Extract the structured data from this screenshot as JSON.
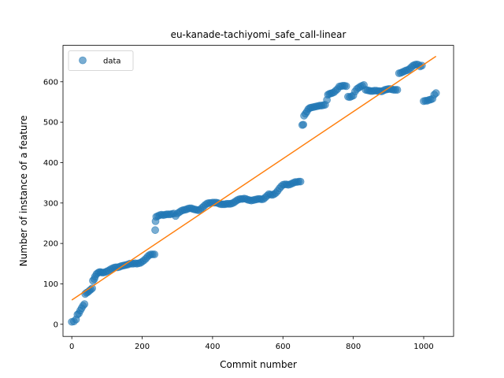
{
  "chart_data": {
    "type": "scatter",
    "title": "eu-kanade-tachiyomi_safe_call-linear",
    "xlabel": "Commit number",
    "ylabel": "Number of instance of a feature",
    "xlim": [
      -25,
      1085
    ],
    "ylim": [
      -30,
      690
    ],
    "xticks": [
      0,
      200,
      400,
      600,
      800,
      1000
    ],
    "yticks": [
      0,
      100,
      200,
      300,
      400,
      500,
      600
    ],
    "grid": false,
    "legend": {
      "placement": "upper-left",
      "entries": [
        "data"
      ]
    },
    "colors": {
      "data": "#1f77b4",
      "fit": "#ff7f0e"
    },
    "series": [
      {
        "name": "data",
        "kind": "scatter",
        "points": [
          [
            0,
            6
          ],
          [
            6,
            7
          ],
          [
            12,
            12
          ],
          [
            16,
            24
          ],
          [
            20,
            27
          ],
          [
            24,
            34
          ],
          [
            28,
            40
          ],
          [
            32,
            46
          ],
          [
            36,
            50
          ],
          [
            38,
            75
          ],
          [
            42,
            78
          ],
          [
            46,
            80
          ],
          [
            50,
            83
          ],
          [
            54,
            86
          ],
          [
            58,
            89
          ],
          [
            60,
            108
          ],
          [
            64,
            112
          ],
          [
            66,
            118
          ],
          [
            70,
            124
          ],
          [
            74,
            127
          ],
          [
            78,
            129
          ],
          [
            82,
            129
          ],
          [
            86,
            128
          ],
          [
            90,
            128
          ],
          [
            95,
            129
          ],
          [
            100,
            131
          ],
          [
            105,
            133
          ],
          [
            110,
            136
          ],
          [
            115,
            138
          ],
          [
            120,
            140
          ],
          [
            125,
            141
          ],
          [
            130,
            141
          ],
          [
            135,
            142
          ],
          [
            140,
            144
          ],
          [
            145,
            145
          ],
          [
            150,
            146
          ],
          [
            155,
            147
          ],
          [
            160,
            148
          ],
          [
            165,
            150
          ],
          [
            170,
            150
          ],
          [
            175,
            150
          ],
          [
            180,
            151
          ],
          [
            185,
            150
          ],
          [
            190,
            151
          ],
          [
            195,
            152
          ],
          [
            200,
            155
          ],
          [
            205,
            158
          ],
          [
            210,
            162
          ],
          [
            215,
            167
          ],
          [
            220,
            171
          ],
          [
            225,
            173
          ],
          [
            230,
            173
          ],
          [
            235,
            173
          ],
          [
            237,
            233
          ],
          [
            238,
            255
          ],
          [
            240,
            266
          ],
          [
            245,
            268
          ],
          [
            250,
            270
          ],
          [
            255,
            271
          ],
          [
            260,
            270
          ],
          [
            265,
            271
          ],
          [
            270,
            272
          ],
          [
            275,
            272
          ],
          [
            280,
            272
          ],
          [
            285,
            273
          ],
          [
            290,
            274
          ],
          [
            295,
            268
          ],
          [
            300,
            274
          ],
          [
            305,
            277
          ],
          [
            310,
            280
          ],
          [
            315,
            282
          ],
          [
            320,
            283
          ],
          [
            325,
            284
          ],
          [
            330,
            286
          ],
          [
            335,
            287
          ],
          [
            340,
            287
          ],
          [
            345,
            285
          ],
          [
            350,
            284
          ],
          [
            355,
            283
          ],
          [
            360,
            282
          ],
          [
            365,
            284
          ],
          [
            370,
            288
          ],
          [
            375,
            292
          ],
          [
            380,
            296
          ],
          [
            385,
            299
          ],
          [
            390,
            300
          ],
          [
            395,
            300
          ],
          [
            400,
            301
          ],
          [
            405,
            301
          ],
          [
            410,
            301
          ],
          [
            415,
            300
          ],
          [
            420,
            298
          ],
          [
            425,
            297
          ],
          [
            430,
            297
          ],
          [
            435,
            297
          ],
          [
            440,
            298
          ],
          [
            445,
            298
          ],
          [
            450,
            298
          ],
          [
            455,
            299
          ],
          [
            460,
            301
          ],
          [
            465,
            304
          ],
          [
            470,
            307
          ],
          [
            475,
            309
          ],
          [
            480,
            310
          ],
          [
            485,
            310
          ],
          [
            490,
            311
          ],
          [
            495,
            310
          ],
          [
            500,
            308
          ],
          [
            505,
            307
          ],
          [
            510,
            306
          ],
          [
            515,
            307
          ],
          [
            520,
            308
          ],
          [
            525,
            309
          ],
          [
            530,
            310
          ],
          [
            535,
            310
          ],
          [
            540,
            309
          ],
          [
            545,
            310
          ],
          [
            550,
            314
          ],
          [
            555,
            318
          ],
          [
            560,
            322
          ],
          [
            565,
            321
          ],
          [
            570,
            320
          ],
          [
            575,
            322
          ],
          [
            580,
            325
          ],
          [
            585,
            330
          ],
          [
            590,
            336
          ],
          [
            595,
            341
          ],
          [
            600,
            345
          ],
          [
            605,
            346
          ],
          [
            610,
            346
          ],
          [
            615,
            345
          ],
          [
            620,
            346
          ],
          [
            625,
            348
          ],
          [
            630,
            350
          ],
          [
            635,
            352
          ],
          [
            640,
            352
          ],
          [
            645,
            353
          ],
          [
            650,
            353
          ],
          [
            655,
            493
          ],
          [
            658,
            494
          ],
          [
            660,
            516
          ],
          [
            664,
            521
          ],
          [
            668,
            526
          ],
          [
            672,
            532
          ],
          [
            676,
            535
          ],
          [
            680,
            536
          ],
          [
            685,
            537
          ],
          [
            690,
            538
          ],
          [
            695,
            539
          ],
          [
            700,
            540
          ],
          [
            705,
            541
          ],
          [
            710,
            541
          ],
          [
            715,
            542
          ],
          [
            720,
            543
          ],
          [
            725,
            555
          ],
          [
            728,
            568
          ],
          [
            732,
            570
          ],
          [
            736,
            571
          ],
          [
            740,
            572
          ],
          [
            745,
            574
          ],
          [
            750,
            578
          ],
          [
            755,
            582
          ],
          [
            760,
            588
          ],
          [
            765,
            589
          ],
          [
            770,
            590
          ],
          [
            775,
            590
          ],
          [
            780,
            589
          ],
          [
            785,
            563
          ],
          [
            790,
            562
          ],
          [
            795,
            564
          ],
          [
            800,
            566
          ],
          [
            805,
            576
          ],
          [
            810,
            582
          ],
          [
            815,
            585
          ],
          [
            820,
            588
          ],
          [
            825,
            590
          ],
          [
            830,
            592
          ],
          [
            835,
            580
          ],
          [
            840,
            579
          ],
          [
            845,
            578
          ],
          [
            850,
            577
          ],
          [
            855,
            577
          ],
          [
            860,
            578
          ],
          [
            865,
            578
          ],
          [
            870,
            577
          ],
          [
            875,
            577
          ],
          [
            880,
            576
          ],
          [
            885,
            578
          ],
          [
            890,
            580
          ],
          [
            895,
            581
          ],
          [
            900,
            582
          ],
          [
            905,
            582
          ],
          [
            910,
            581
          ],
          [
            915,
            580
          ],
          [
            920,
            580
          ],
          [
            925,
            580
          ],
          [
            930,
            621
          ],
          [
            935,
            622
          ],
          [
            940,
            624
          ],
          [
            945,
            626
          ],
          [
            950,
            628
          ],
          [
            955,
            629
          ],
          [
            960,
            632
          ],
          [
            965,
            636
          ],
          [
            970,
            640
          ],
          [
            975,
            642
          ],
          [
            980,
            643
          ],
          [
            985,
            642
          ],
          [
            990,
            638
          ],
          [
            995,
            640
          ],
          [
            1000,
            552
          ],
          [
            1005,
            553
          ],
          [
            1010,
            553
          ],
          [
            1015,
            555
          ],
          [
            1020,
            556
          ],
          [
            1025,
            558
          ],
          [
            1030,
            568
          ],
          [
            1035,
            572
          ]
        ]
      },
      {
        "name": "",
        "kind": "line",
        "points": [
          [
            0,
            60
          ],
          [
            1035,
            663
          ]
        ]
      }
    ]
  }
}
